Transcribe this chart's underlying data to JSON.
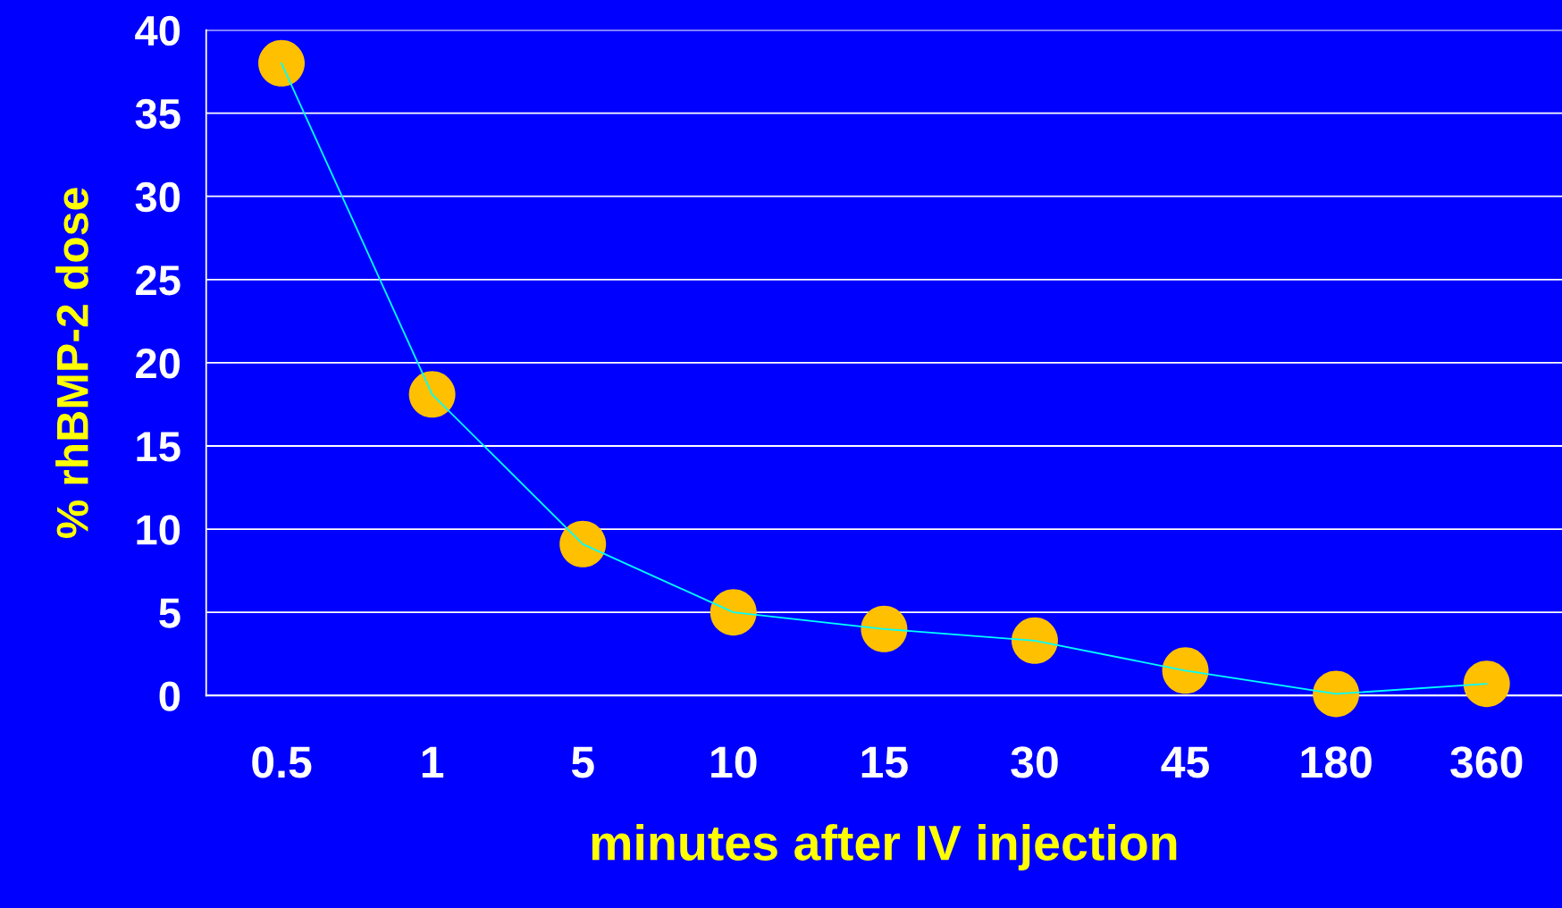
{
  "chart_data": {
    "type": "line",
    "xlabel": "minutes after IV injection",
    "ylabel": "% rhBMP-2 dose",
    "categories": [
      "0.5",
      "1",
      "5",
      "10",
      "15",
      "30",
      "45",
      "180",
      "360"
    ],
    "series": [
      {
        "color": "#00ffff",
        "marker": "none",
        "values": [
          38,
          18.1,
          9.1,
          5,
          4,
          3.3,
          1.5,
          0.1,
          0.7
        ]
      },
      {
        "type": "scatter",
        "color": "#ffc000",
        "values": [
          38,
          18.1,
          9.1,
          5,
          4,
          3.3,
          1.5,
          0.1,
          0.7
        ]
      }
    ],
    "ylim": [
      0,
      40
    ],
    "yticks": [
      0,
      5,
      10,
      15,
      20,
      25,
      30,
      35,
      40
    ],
    "grid": "y",
    "marker": "circle",
    "line_style": "solid"
  }
}
